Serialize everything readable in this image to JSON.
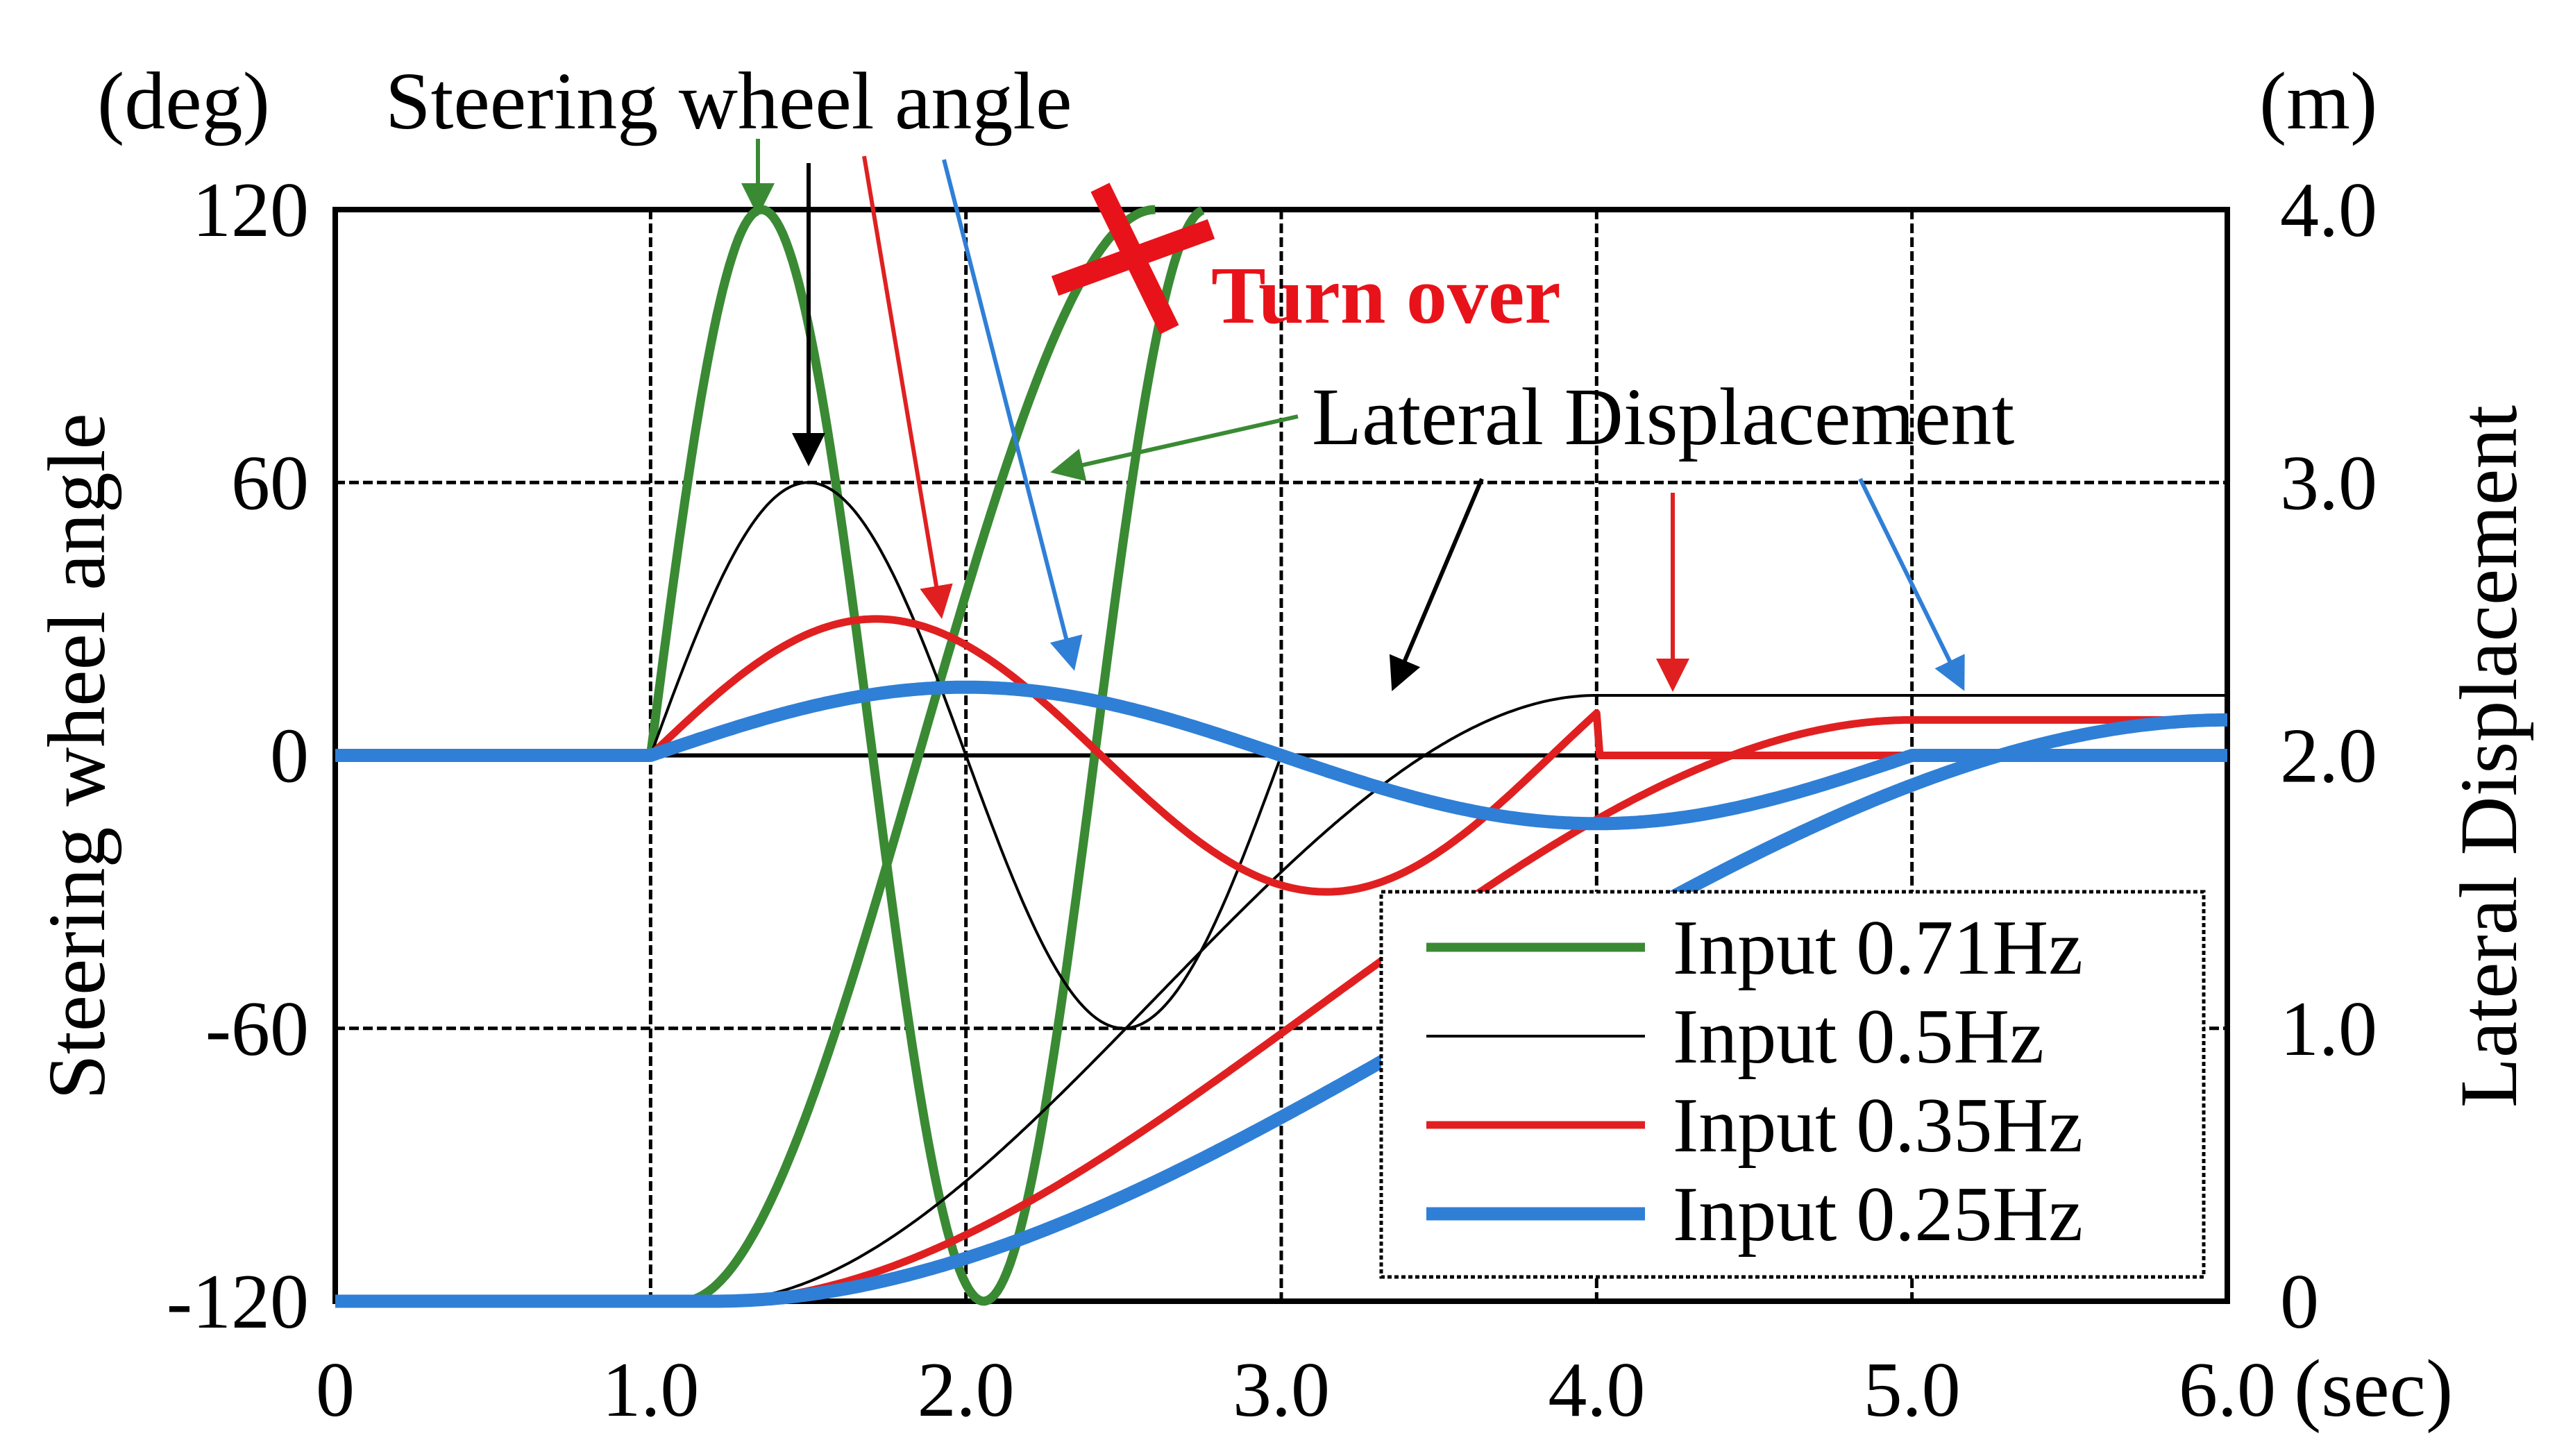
{
  "chart_data": {
    "type": "line",
    "title": "",
    "x": {
      "label": "(sec)",
      "range": [
        0,
        6
      ],
      "ticks": [
        "0",
        "1.0",
        "2.0",
        "3.0",
        "4.0",
        "5.0",
        "6.0"
      ]
    },
    "y_left": {
      "unit": "(deg)",
      "label": "Steering wheel angle",
      "range": [
        -120,
        120
      ],
      "ticks": [
        "-120",
        "-60",
        "0",
        "60",
        "120"
      ]
    },
    "y_right": {
      "unit": "(m)",
      "label": "Lateral Displacement",
      "range": [
        0,
        4.0
      ],
      "ticks": [
        "0",
        "1.0",
        "2.0",
        "3.0",
        "4.0"
      ]
    },
    "annotations": {
      "steering": "Steering wheel angle",
      "lateral": "Lateral Displacement",
      "turnover": "Turn over"
    },
    "legend_position": "bottom-right",
    "series": [
      {
        "name": "Input 0.71Hz",
        "color": "#3a8a34",
        "width": 13,
        "steering": {
          "freq": 0.71,
          "amp": 120,
          "start": 1.0,
          "end": 2.75
        },
        "lateral": {
          "start": 1.1,
          "end": 2.6,
          "end_value": 4.0,
          "turnover": true
        }
      },
      {
        "name": "Input 0.5Hz",
        "color": "#000000",
        "width": 4,
        "steering": {
          "freq": 0.5,
          "amp": 60,
          "start": 1.0,
          "end": 3.0
        },
        "lateral": {
          "start": 1.2,
          "end": 4.0,
          "end_value": 2.22
        }
      },
      {
        "name": "Input 0.35Hz",
        "color": "#e02020",
        "width": 11,
        "steering": {
          "freq": 0.35,
          "amp": 30,
          "start": 1.0,
          "end": 4.0
        },
        "lateral": {
          "start": 1.2,
          "end": 5.0,
          "end_value": 2.13
        }
      },
      {
        "name": "Input 0.25Hz",
        "color": "#2f7fd6",
        "width": 19,
        "steering": {
          "freq": 0.25,
          "amp": 15,
          "start": 1.0,
          "end": 5.0
        },
        "lateral": {
          "start": 1.2,
          "end": 6.0,
          "end_value": 2.13
        }
      }
    ]
  }
}
